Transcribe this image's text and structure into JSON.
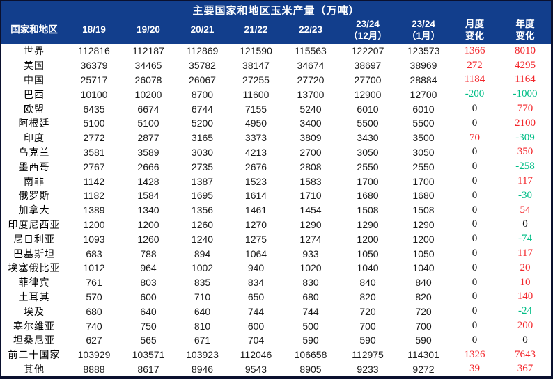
{
  "colors": {
    "header_background": "#123e8c",
    "header_text": "#ffffff",
    "frame": "#0a102e",
    "positive_change": "#f3262b",
    "negative_change": "#00bd86",
    "zero_change": "#111111",
    "body_text": "#1a1a1a"
  },
  "chart_data": {
    "type": "table",
    "title": "主要国家和地区玉米产量（万吨）",
    "columns": [
      {
        "line1": "国家和地区",
        "line2": ""
      },
      {
        "line1": "18/19",
        "line2": ""
      },
      {
        "line1": "19/20",
        "line2": ""
      },
      {
        "line1": "20/21",
        "line2": ""
      },
      {
        "line1": "21/22",
        "line2": ""
      },
      {
        "line1": "22/23",
        "line2": ""
      },
      {
        "line1": "23/24",
        "line2": "（12月）"
      },
      {
        "line1": "23/24",
        "line2": "（1月）"
      },
      {
        "line1": "月度",
        "line2": "变化"
      },
      {
        "line1": "年度",
        "line2": "变化"
      }
    ],
    "rows": [
      {
        "name": "世界",
        "cells": [
          "112816",
          "112187",
          "112869",
          "121590",
          "115563",
          "122207",
          "123573",
          "1366",
          "8010"
        ]
      },
      {
        "name": "美国",
        "cells": [
          "36379",
          "34465",
          "35782",
          "38147",
          "34674",
          "38697",
          "38969",
          "272",
          "4295"
        ]
      },
      {
        "name": "中国",
        "cells": [
          "25717",
          "26078",
          "26067",
          "27255",
          "27720",
          "27700",
          "28884",
          "1184",
          "1164"
        ]
      },
      {
        "name": "巴西",
        "cells": [
          "10100",
          "10200",
          "8700",
          "11600",
          "13700",
          "12900",
          "12700",
          "-200",
          "-1000"
        ]
      },
      {
        "name": "欧盟",
        "cells": [
          "6435",
          "6674",
          "6744",
          "7155",
          "5240",
          "6010",
          "6010",
          "0",
          "770"
        ]
      },
      {
        "name": "阿根廷",
        "cells": [
          "5100",
          "5100",
          "5200",
          "4950",
          "3400",
          "5500",
          "5500",
          "0",
          "2100"
        ]
      },
      {
        "name": "印度",
        "cells": [
          "2772",
          "2877",
          "3165",
          "3373",
          "3809",
          "3430",
          "3500",
          "70",
          "-309"
        ]
      },
      {
        "name": "乌克兰",
        "cells": [
          "3581",
          "3589",
          "3030",
          "4213",
          "2700",
          "3050",
          "3050",
          "0",
          "350"
        ]
      },
      {
        "name": "墨西哥",
        "cells": [
          "2767",
          "2666",
          "2735",
          "2676",
          "2808",
          "2550",
          "2550",
          "0",
          "-258"
        ]
      },
      {
        "name": "南非",
        "cells": [
          "1142",
          "1428",
          "1387",
          "1523",
          "1583",
          "1700",
          "1700",
          "0",
          "117"
        ]
      },
      {
        "name": "俄罗斯",
        "cells": [
          "1182",
          "1584",
          "1695",
          "1614",
          "1710",
          "1680",
          "1680",
          "0",
          "-30"
        ]
      },
      {
        "name": "加拿大",
        "cells": [
          "1389",
          "1340",
          "1356",
          "1461",
          "1454",
          "1508",
          "1508",
          "0",
          "54"
        ]
      },
      {
        "name": "印度尼西亚",
        "cells": [
          "1200",
          "1200",
          "1260",
          "1270",
          "1290",
          "1290",
          "1290",
          "0",
          "0"
        ]
      },
      {
        "name": "尼日利亚",
        "cells": [
          "1093",
          "1260",
          "1240",
          "1275",
          "1274",
          "1200",
          "1200",
          "0",
          "-74"
        ]
      },
      {
        "name": "巴基斯坦",
        "cells": [
          "683",
          "788",
          "894",
          "1064",
          "933",
          "1050",
          "1050",
          "0",
          "117"
        ]
      },
      {
        "name": "埃塞俄比亚",
        "cells": [
          "1012",
          "964",
          "1002",
          "940",
          "1020",
          "1040",
          "1040",
          "0",
          "20"
        ]
      },
      {
        "name": "菲律宾",
        "cells": [
          "761",
          "803",
          "835",
          "834",
          "830",
          "840",
          "840",
          "0",
          "10"
        ]
      },
      {
        "name": "土耳其",
        "cells": [
          "570",
          "600",
          "710",
          "650",
          "680",
          "820",
          "820",
          "0",
          "140"
        ]
      },
      {
        "name": "埃及",
        "cells": [
          "680",
          "640",
          "640",
          "744",
          "744",
          "720",
          "720",
          "0",
          "-24"
        ]
      },
      {
        "name": "塞尔维亚",
        "cells": [
          "740",
          "750",
          "810",
          "600",
          "500",
          "700",
          "700",
          "0",
          "200"
        ]
      },
      {
        "name": "坦桑尼亚",
        "cells": [
          "627",
          "565",
          "671",
          "704",
          "590",
          "590",
          "590",
          "0",
          "0"
        ]
      },
      {
        "name": "前二十国家",
        "cells": [
          "103929",
          "103571",
          "103923",
          "112046",
          "106658",
          "112975",
          "114301",
          "1326",
          "7643"
        ]
      },
      {
        "name": "其他",
        "cells": [
          "8888",
          "8617",
          "8946",
          "9543",
          "8905",
          "9233",
          "9272",
          "39",
          "367"
        ]
      }
    ]
  }
}
